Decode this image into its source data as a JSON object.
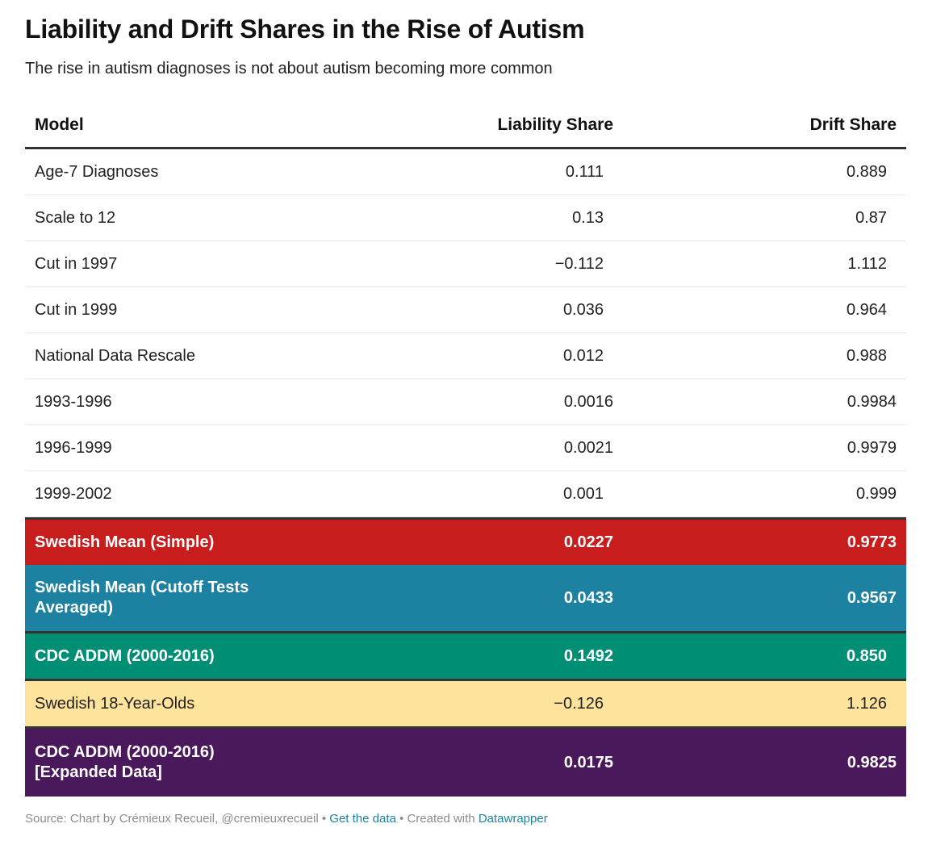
{
  "title": "Liability and Drift Shares in the Rise of Autism",
  "subtitle": "The rise in autism diagnoses is not about autism becoming more common",
  "columns": [
    "Model",
    "Liability Share",
    "Drift Share"
  ],
  "chart_data": {
    "type": "table",
    "title": "Liability and Drift Shares in the Rise of Autism",
    "columns": [
      "Model",
      "Liability Share",
      "Drift Share"
    ],
    "rows": [
      {
        "model": "Age-7 Diagnoses",
        "liability": "0.111",
        "drift": "0.889",
        "highlight": null
      },
      {
        "model": "Scale to 12",
        "liability": "0.13",
        "drift": "0.87",
        "highlight": null
      },
      {
        "model": "Cut in 1997",
        "liability": "−0.112",
        "drift": "1.112",
        "highlight": null
      },
      {
        "model": "Cut in 1999",
        "liability": "0.036",
        "drift": "0.964",
        "highlight": null
      },
      {
        "model": "National Data Rescale",
        "liability": "0.012",
        "drift": "0.988",
        "highlight": null
      },
      {
        "model": "1993-1996",
        "liability": "0.0016",
        "drift": "0.9984",
        "highlight": null
      },
      {
        "model": "1996-1999",
        "liability": "0.0021",
        "drift": "0.9979",
        "highlight": null
      },
      {
        "model": "1999-2002",
        "liability": "0.001",
        "drift": "0.999",
        "highlight": null
      },
      {
        "model": "Swedish Mean (Simple)",
        "liability": "0.0227",
        "drift": "0.9773",
        "highlight": "#c71e1d"
      },
      {
        "model": "Swedish Mean (Cutoff Tests Averaged)",
        "liability": "0.0433",
        "drift": "0.9567",
        "highlight": "#1d81a2"
      },
      {
        "model": "CDC ADDM (2000-2016)",
        "liability": "0.1492",
        "drift": "0.850",
        "highlight": "#008f75"
      },
      {
        "model": "Swedish 18-Year-Olds",
        "liability": "−0.126",
        "drift": "1.126",
        "highlight": "#fee39c"
      },
      {
        "model": "CDC ADDM (2000-2016) [Expanded Data]",
        "liability": "0.0175",
        "drift": "0.9825",
        "highlight": "#4a195c"
      }
    ]
  },
  "footer": {
    "source": "Source: Chart by Crémieux Recueil, @cremieuxrecueil",
    "sep1": " • ",
    "get_data": "Get the data",
    "sep2": " • Created with ",
    "tool": "Datawrapper"
  }
}
